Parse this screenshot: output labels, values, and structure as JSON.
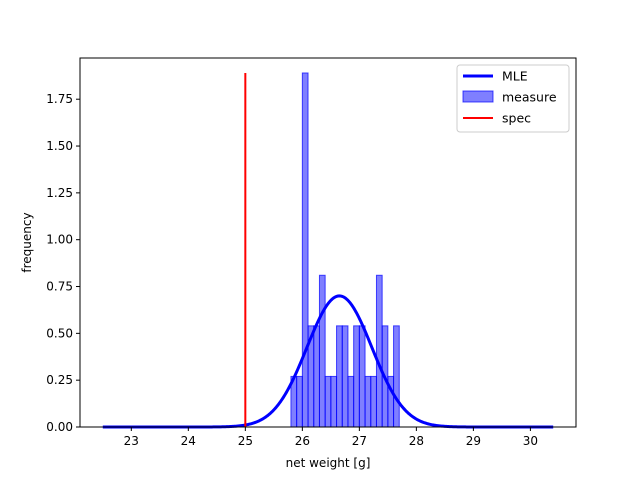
{
  "chart_data": {
    "type": "bar",
    "title": "",
    "xlabel": "net weight [g]",
    "ylabel": "frequency",
    "xlim": [
      22.1,
      30.8
    ],
    "ylim": [
      0,
      1.97
    ],
    "xticks": [
      23,
      24,
      25,
      26,
      27,
      28,
      29,
      30
    ],
    "yticks": [
      0.0,
      0.25,
      0.5,
      0.75,
      1.0,
      1.25,
      1.5,
      1.75
    ],
    "ytick_labels": [
      "0.00",
      "0.25",
      "0.50",
      "0.75",
      "1.00",
      "1.25",
      "1.50",
      "1.75"
    ],
    "grid": false,
    "legend_position": "top-right",
    "histogram": {
      "name": "measure",
      "color": "#0000ff",
      "bin_width": 0.1,
      "bins": [
        {
          "x0": 25.8,
          "value": 0.27
        },
        {
          "x0": 25.9,
          "value": 0.27
        },
        {
          "x0": 26.0,
          "value": 1.89
        },
        {
          "x0": 26.1,
          "value": 0.54
        },
        {
          "x0": 26.2,
          "value": 0.54
        },
        {
          "x0": 26.3,
          "value": 0.81
        },
        {
          "x0": 26.4,
          "value": 0.27
        },
        {
          "x0": 26.5,
          "value": 0.27
        },
        {
          "x0": 26.6,
          "value": 0.54
        },
        {
          "x0": 26.7,
          "value": 0.54
        },
        {
          "x0": 26.8,
          "value": 0.27
        },
        {
          "x0": 26.9,
          "value": 0.54
        },
        {
          "x0": 27.0,
          "value": 0.54
        },
        {
          "x0": 27.1,
          "value": 0.27
        },
        {
          "x0": 27.2,
          "value": 0.27
        },
        {
          "x0": 27.3,
          "value": 0.81
        },
        {
          "x0": 27.4,
          "value": 0.54
        },
        {
          "x0": 27.5,
          "value": 0.27
        },
        {
          "x0": 27.6,
          "value": 0.54
        }
      ]
    },
    "mle_curve": {
      "name": "MLE",
      "color": "#0000ff",
      "mean": 26.65,
      "std": 0.57,
      "x_range": [
        22.5,
        30.4
      ]
    },
    "spec_line": {
      "name": "spec",
      "color": "#ff0000",
      "x": 25.0,
      "y_range": [
        0,
        1.89
      ]
    },
    "legend": [
      {
        "label": "MLE",
        "kind": "line"
      },
      {
        "label": "measure",
        "kind": "patch"
      },
      {
        "label": "spec",
        "kind": "line"
      }
    ]
  }
}
